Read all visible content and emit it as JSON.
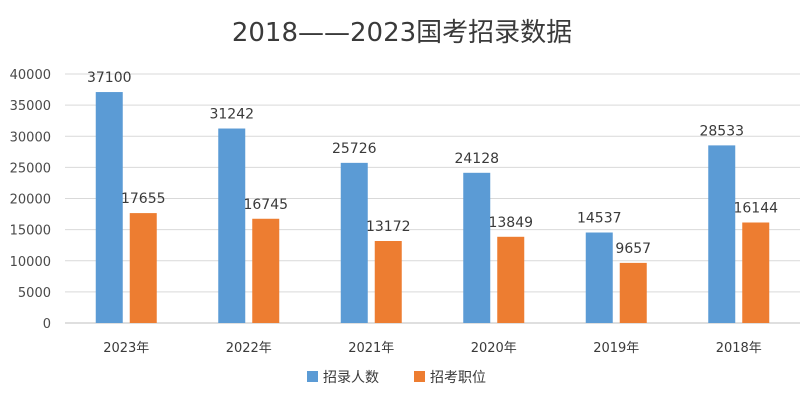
{
  "chart_data": {
    "type": "bar",
    "title": "2018——2023国考招录数据",
    "categories": [
      "2023年",
      "2022年",
      "2021年",
      "2020年",
      "2019年",
      "2018年"
    ],
    "series": [
      {
        "name": "招录人数",
        "color": "#5b9bd5",
        "values": [
          37100,
          31242,
          25726,
          24128,
          14537,
          28533
        ]
      },
      {
        "name": "招考职位",
        "color": "#ed7d31",
        "values": [
          17655,
          16745,
          13172,
          13849,
          9657,
          16144
        ]
      }
    ],
    "ylim": [
      0,
      40000
    ],
    "yticks": [
      0,
      5000,
      10000,
      15000,
      20000,
      25000,
      30000,
      35000,
      40000
    ],
    "grid": true,
    "legend": "bottom"
  }
}
